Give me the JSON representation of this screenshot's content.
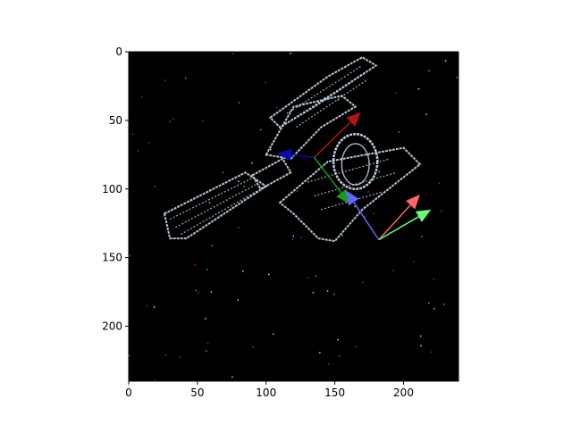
{
  "chart_data": {
    "type": "image",
    "title": "",
    "xlabel": "",
    "ylabel": "",
    "xlim": [
      0,
      240
    ],
    "ylim": [
      240,
      0
    ],
    "x_ticks": [
      0,
      50,
      100,
      150,
      200
    ],
    "y_ticks": [
      0,
      50,
      100,
      150,
      200
    ],
    "x_tick_labels": [
      "0",
      "50",
      "100",
      "150",
      "200"
    ],
    "y_tick_labels": [
      "0",
      "50",
      "100",
      "150",
      "200"
    ],
    "image": {
      "background": "#000000",
      "outline_color": "#c8d8e8",
      "content": "speckled satellite outline"
    },
    "axes_triads": [
      {
        "name": "triad-dark",
        "origin": [
          135,
          77
        ],
        "arrows": [
          {
            "name": "x-axis",
            "color": "#b01414",
            "tip": [
              169,
              44
            ]
          },
          {
            "name": "y-axis",
            "color": "#0a0ab4",
            "tip": [
              108,
              74
            ]
          },
          {
            "name": "z-axis",
            "color": "#14a014",
            "tip": [
              161,
              111
            ]
          }
        ]
      },
      {
        "name": "triad-light",
        "origin": [
          182,
          137
        ],
        "arrows": [
          {
            "name": "x-axis",
            "color": "#ff6464",
            "tip": [
              212,
              104
            ]
          },
          {
            "name": "y-axis",
            "color": "#6464ff",
            "tip": [
              158,
              101
            ]
          },
          {
            "name": "z-axis",
            "color": "#64ff78",
            "tip": [
              220,
              115
            ]
          }
        ]
      }
    ]
  }
}
